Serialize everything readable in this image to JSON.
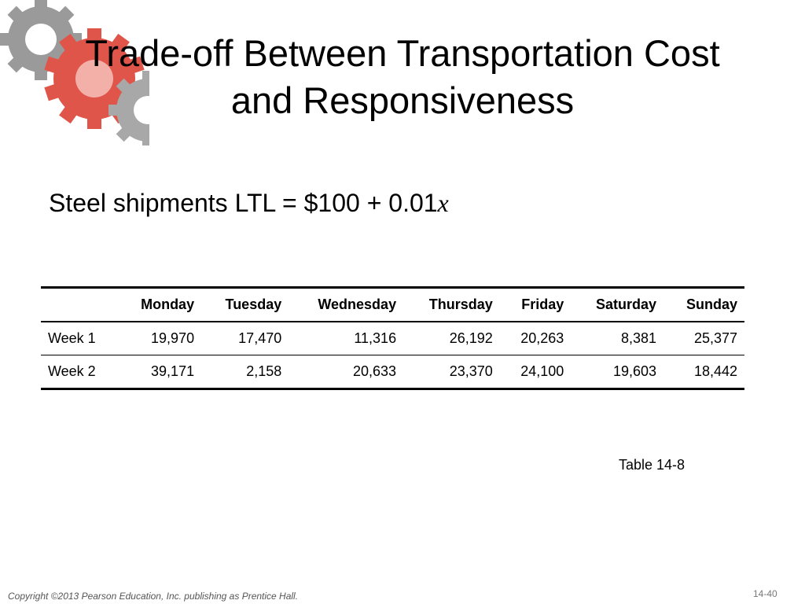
{
  "header": {
    "title": "Trade-off Between Transportation Cost and Responsiveness"
  },
  "formula": {
    "text": "Steel shipments LTL = $100 + 0.01",
    "variable": "x"
  },
  "table": {
    "columns": [
      "Monday",
      "Tuesday",
      "Wednesday",
      "Thursday",
      "Friday",
      "Saturday",
      "Sunday"
    ],
    "rows": [
      {
        "label": "Week 1",
        "values": [
          "19,970",
          "17,470",
          "11,316",
          "26,192",
          "20,263",
          "8,381",
          "25,377"
        ]
      },
      {
        "label": "Week 2",
        "values": [
          "39,171",
          "2,158",
          "20,633",
          "23,370",
          "24,100",
          "19,603",
          "18,442"
        ]
      }
    ],
    "caption": "Table 14-8"
  },
  "footer": {
    "copyright": "Copyright ©2013 Pearson Education, Inc. publishing as Prentice Hall.",
    "page": "14-40"
  }
}
